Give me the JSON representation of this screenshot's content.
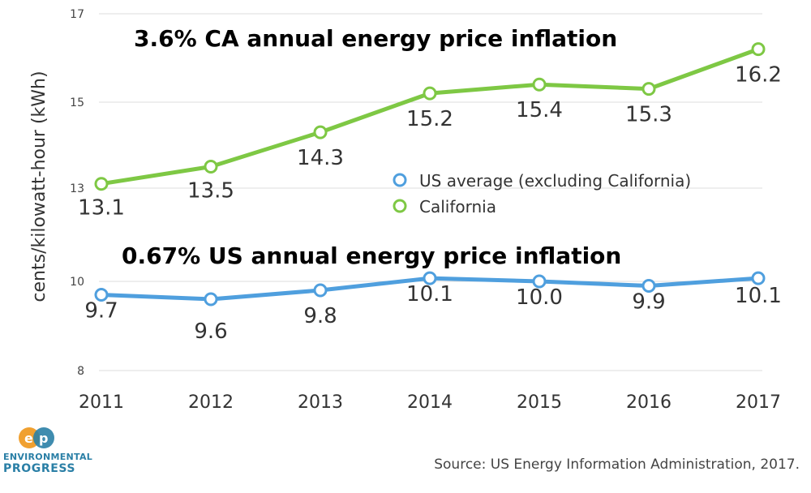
{
  "chart_data": {
    "type": "line",
    "categories": [
      "2011",
      "2012",
      "2013",
      "2014",
      "2015",
      "2016",
      "2017"
    ],
    "ylabel": "cents/kilowatt-hour (kWh)",
    "yticks": [
      "8",
      "10",
      "13",
      "15",
      "17"
    ],
    "series": [
      {
        "name": "US average (excluding California)",
        "color": "#4f9fde",
        "values": [
          9.7,
          9.6,
          9.8,
          10.1,
          10.0,
          9.9,
          10.1
        ],
        "labels": [
          "9.7",
          "9.6",
          "9.8",
          "10.1",
          "10.0",
          "9.9",
          "10.1"
        ]
      },
      {
        "name": "California",
        "color": "#7ec844",
        "values": [
          13.1,
          13.5,
          14.3,
          15.2,
          15.4,
          15.3,
          16.2
        ],
        "labels": [
          "13.1",
          "13.5",
          "14.3",
          "15.2",
          "15.4",
          "15.3",
          "16.2"
        ]
      }
    ],
    "annotations": [
      "3.6% CA annual energy price inflation",
      "0.67% US annual energy price inflation"
    ],
    "legend_position": "center-right",
    "grid": true
  },
  "source": "Source: US Energy Information Administration, 2017.",
  "logo": {
    "line1": "ENVIRONMENTAL",
    "line2": "PROGRESS",
    "colors": [
      "#f0a030",
      "#2a7fa6"
    ]
  }
}
